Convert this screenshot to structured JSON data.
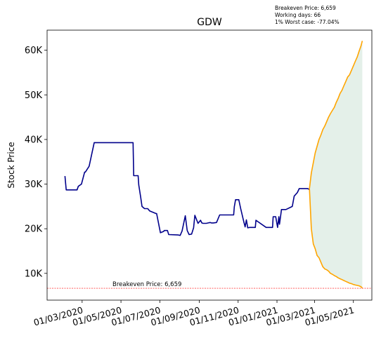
{
  "chart_data": {
    "type": "line",
    "title": "GDW",
    "ylabel": "Stock Price",
    "xlabel": "",
    "ylim": [
      4000,
      64500
    ],
    "xlim": [
      "2020-01-06",
      "2021-05-30"
    ],
    "grid": false,
    "info_lines": [
      "Breakeven Price: 6,659",
      "Working days: 66",
      "1% Worst case: -77.04%"
    ],
    "yticks": [
      {
        "value": 10000,
        "label": "10K"
      },
      {
        "value": 20000,
        "label": "20K"
      },
      {
        "value": 30000,
        "label": "30K"
      },
      {
        "value": 40000,
        "label": "40K"
      },
      {
        "value": 50000,
        "label": "50K"
      },
      {
        "value": 60000,
        "label": "60K"
      }
    ],
    "xticks": [
      {
        "value": "2020-03-01",
        "label": "01/03/2020"
      },
      {
        "value": "2020-05-01",
        "label": "01/05/2020"
      },
      {
        "value": "2020-07-01",
        "label": "01/07/2020"
      },
      {
        "value": "2020-09-01",
        "label": "01/09/2020"
      },
      {
        "value": "2020-11-01",
        "label": "01/11/2020"
      },
      {
        "value": "2021-01-01",
        "label": "01/01/2021"
      },
      {
        "value": "2021-03-01",
        "label": "01/03/2021"
      },
      {
        "value": "2021-05-01",
        "label": "01/05/2021"
      }
    ],
    "breakeven": {
      "value": 6659,
      "label": "Breakeven Price: 6,659",
      "color": "#ff0000"
    },
    "colors": {
      "history": "#00008b",
      "forecast": "#ffa500",
      "fill": "#2e8b57"
    },
    "series": [
      {
        "role": "history",
        "x": [
          "2020-02-03",
          "2020-02-05",
          "2020-02-20",
          "2020-02-22",
          "2020-02-24",
          "2020-02-29",
          "2020-03-05",
          "2020-03-06",
          "2020-03-12",
          "2020-03-20",
          "2020-03-22",
          "2020-04-10",
          "2020-04-20",
          "2020-04-30",
          "2020-05-10",
          "2020-05-20",
          "2020-05-21",
          "2020-05-28",
          "2020-05-29",
          "2020-06-01",
          "2020-06-03",
          "2020-06-07",
          "2020-06-12",
          "2020-06-15",
          "2020-06-25",
          "2020-06-26",
          "2020-07-02",
          "2020-07-07",
          "2020-07-08",
          "2020-07-13",
          "2020-07-15",
          "2020-07-30",
          "2020-08-02",
          "2020-08-05",
          "2020-08-10",
          "2020-08-13",
          "2020-08-16",
          "2020-08-20",
          "2020-08-23",
          "2020-08-25",
          "2020-08-30",
          "2020-09-03",
          "2020-09-05",
          "2020-09-07",
          "2020-09-09",
          "2020-09-12",
          "2020-09-15",
          "2020-09-18",
          "2020-09-20",
          "2020-09-23",
          "2020-09-28",
          "2020-10-03",
          "2020-10-05",
          "2020-10-06",
          "2020-10-15",
          "2020-10-25",
          "2020-10-26",
          "2020-10-28",
          "2020-11-02",
          "2020-11-05",
          "2020-11-10",
          "2020-11-12",
          "2020-11-14",
          "2020-11-16",
          "2020-11-19",
          "2020-11-25",
          "2020-11-28",
          "2020-11-29",
          "2020-12-15",
          "2020-12-25",
          "2020-12-26",
          "2020-12-30",
          "2021-01-02",
          "2021-01-04",
          "2021-01-05",
          "2021-01-07",
          "2021-01-08",
          "2021-01-15",
          "2021-01-25",
          "2021-01-28",
          "2021-02-02",
          "2021-02-05",
          "2021-02-13",
          "2021-02-18",
          "2021-02-21"
        ],
        "y": [
          31800,
          28700,
          28700,
          28700,
          29500,
          30000,
          32700,
          32700,
          34000,
          39300,
          39300,
          39300,
          39300,
          39300,
          39300,
          39300,
          31900,
          31900,
          29800,
          27000,
          25000,
          24500,
          24500,
          24000,
          23400,
          23400,
          19100,
          19400,
          19600,
          19600,
          18700,
          18600,
          18500,
          19500,
          22900,
          19600,
          18700,
          18800,
          20200,
          23000,
          21200,
          21900,
          21300,
          21200,
          21200,
          21200,
          21300,
          21400,
          21300,
          21300,
          21400,
          23100,
          23100,
          23100,
          23100,
          23100,
          24900,
          26500,
          26500,
          24500,
          21500,
          20400,
          22000,
          20200,
          20300,
          20300,
          20300,
          21900,
          20300,
          20300,
          22700,
          22700,
          20300,
          22700,
          21000,
          23200,
          24300,
          24300,
          25000,
          27300,
          28100,
          29000,
          29000,
          29000,
          28800
        ]
      },
      {
        "role": "forecast-upper",
        "x": [
          "2021-02-21",
          "2021-02-24",
          "2021-02-27",
          "2021-03-02",
          "2021-03-05",
          "2021-03-08",
          "2021-03-11",
          "2021-03-14",
          "2021-03-17",
          "2021-03-20",
          "2021-03-23",
          "2021-03-26",
          "2021-03-29",
          "2021-04-01",
          "2021-04-04",
          "2021-04-07",
          "2021-04-10",
          "2021-04-13",
          "2021-04-16",
          "2021-04-19",
          "2021-04-22",
          "2021-04-25",
          "2021-04-28",
          "2021-05-01",
          "2021-05-04",
          "2021-05-07",
          "2021-05-10",
          "2021-05-13",
          "2021-05-15"
        ],
        "y": [
          29000,
          32500,
          34800,
          37000,
          38500,
          40000,
          41000,
          42200,
          43000,
          44000,
          45000,
          45800,
          46500,
          47200,
          48300,
          49200,
          50300,
          51000,
          52000,
          53000,
          54000,
          54500,
          55500,
          56500,
          57500,
          58500,
          59800,
          61000,
          62100
        ]
      },
      {
        "role": "forecast-lower",
        "x": [
          "2021-02-21",
          "2021-02-24",
          "2021-02-27",
          "2021-03-02",
          "2021-03-05",
          "2021-03-08",
          "2021-03-11",
          "2021-03-14",
          "2021-03-17",
          "2021-03-20",
          "2021-03-23",
          "2021-03-26",
          "2021-03-29",
          "2021-04-01",
          "2021-04-04",
          "2021-04-07",
          "2021-04-10",
          "2021-04-13",
          "2021-04-16",
          "2021-04-19",
          "2021-04-22",
          "2021-04-25",
          "2021-04-28",
          "2021-05-01",
          "2021-05-04",
          "2021-05-07",
          "2021-05-10",
          "2021-05-13",
          "2021-05-15"
        ],
        "y": [
          29000,
          20000,
          16600,
          15500,
          14000,
          13500,
          12500,
          11500,
          11000,
          10800,
          10500,
          10000,
          9800,
          9500,
          9300,
          9000,
          8800,
          8600,
          8400,
          8200,
          8000,
          7800,
          7700,
          7500,
          7400,
          7300,
          7200,
          7000,
          6700
        ]
      }
    ]
  }
}
